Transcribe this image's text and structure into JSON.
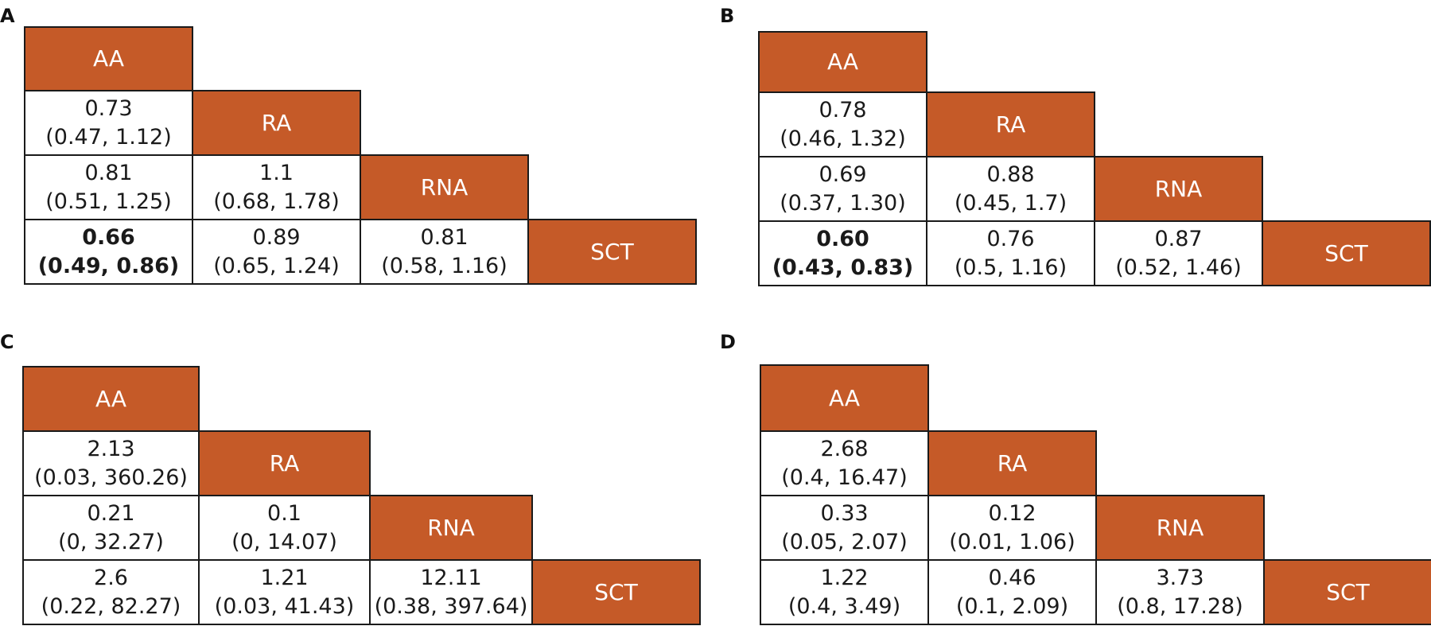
{
  "colors": {
    "diagonal": "#c55a28",
    "diagonal_text": "#ffffff",
    "text": "#1a1a1a",
    "border": "#1a1a1a"
  },
  "chart_data": [
    {
      "type": "table",
      "panel": "A",
      "treatments": [
        "AA",
        "RA",
        "RNA",
        "SCT"
      ],
      "cells": [
        {
          "row": 1,
          "col": 0,
          "estimate": "0.73",
          "ci": "(0.47, 1.12)",
          "bold": false
        },
        {
          "row": 2,
          "col": 0,
          "estimate": "0.81",
          "ci": "(0.51, 1.25)",
          "bold": false
        },
        {
          "row": 2,
          "col": 1,
          "estimate": "1.1",
          "ci": "(0.68, 1.78)",
          "bold": false
        },
        {
          "row": 3,
          "col": 0,
          "estimate": "0.66",
          "ci": "(0.49, 0.86)",
          "bold": true
        },
        {
          "row": 3,
          "col": 1,
          "estimate": "0.89",
          "ci": "(0.65, 1.24)",
          "bold": false
        },
        {
          "row": 3,
          "col": 2,
          "estimate": "0.81",
          "ci": "(0.58, 1.16)",
          "bold": false
        }
      ]
    },
    {
      "type": "table",
      "panel": "B",
      "treatments": [
        "AA",
        "RA",
        "RNA",
        "SCT"
      ],
      "cells": [
        {
          "row": 1,
          "col": 0,
          "estimate": "0.78",
          "ci": "(0.46, 1.32)",
          "bold": false
        },
        {
          "row": 2,
          "col": 0,
          "estimate": "0.69",
          "ci": "(0.37, 1.30)",
          "bold": false
        },
        {
          "row": 2,
          "col": 1,
          "estimate": "0.88",
          "ci": "(0.45, 1.7)",
          "bold": false
        },
        {
          "row": 3,
          "col": 0,
          "estimate": "0.60",
          "ci": "(0.43, 0.83)",
          "bold": true
        },
        {
          "row": 3,
          "col": 1,
          "estimate": "0.76",
          "ci": "(0.5, 1.16)",
          "bold": false
        },
        {
          "row": 3,
          "col": 2,
          "estimate": "0.87",
          "ci": "(0.52, 1.46)",
          "bold": false
        }
      ]
    },
    {
      "type": "table",
      "panel": "C",
      "treatments": [
        "AA",
        "RA",
        "RNA",
        "SCT"
      ],
      "cells": [
        {
          "row": 1,
          "col": 0,
          "estimate": "2.13",
          "ci": "(0.03, 360.26)",
          "bold": false
        },
        {
          "row": 2,
          "col": 0,
          "estimate": "0.21",
          "ci": "(0, 32.27)",
          "bold": false
        },
        {
          "row": 2,
          "col": 1,
          "estimate": "0.1",
          "ci": "(0, 14.07)",
          "bold": false
        },
        {
          "row": 3,
          "col": 0,
          "estimate": "2.6",
          "ci": "(0.22, 82.27)",
          "bold": false
        },
        {
          "row": 3,
          "col": 1,
          "estimate": "1.21",
          "ci": "(0.03, 41.43)",
          "bold": false
        },
        {
          "row": 3,
          "col": 2,
          "estimate": "12.11",
          "ci": "(0.38, 397.64)",
          "bold": false
        }
      ]
    },
    {
      "type": "table",
      "panel": "D",
      "treatments": [
        "AA",
        "RA",
        "RNA",
        "SCT"
      ],
      "cells": [
        {
          "row": 1,
          "col": 0,
          "estimate": "2.68",
          "ci": "(0.4, 16.47)",
          "bold": false
        },
        {
          "row": 2,
          "col": 0,
          "estimate": "0.33",
          "ci": "(0.05, 2.07)",
          "bold": false
        },
        {
          "row": 2,
          "col": 1,
          "estimate": "0.12",
          "ci": "(0.01, 1.06)",
          "bold": false
        },
        {
          "row": 3,
          "col": 0,
          "estimate": "1.22",
          "ci": "(0.4, 3.49)",
          "bold": false
        },
        {
          "row": 3,
          "col": 1,
          "estimate": "0.46",
          "ci": "(0.1, 2.09)",
          "bold": false
        },
        {
          "row": 3,
          "col": 2,
          "estimate": "3.73",
          "ci": "(0.8, 17.28)",
          "bold": false
        }
      ]
    }
  ]
}
